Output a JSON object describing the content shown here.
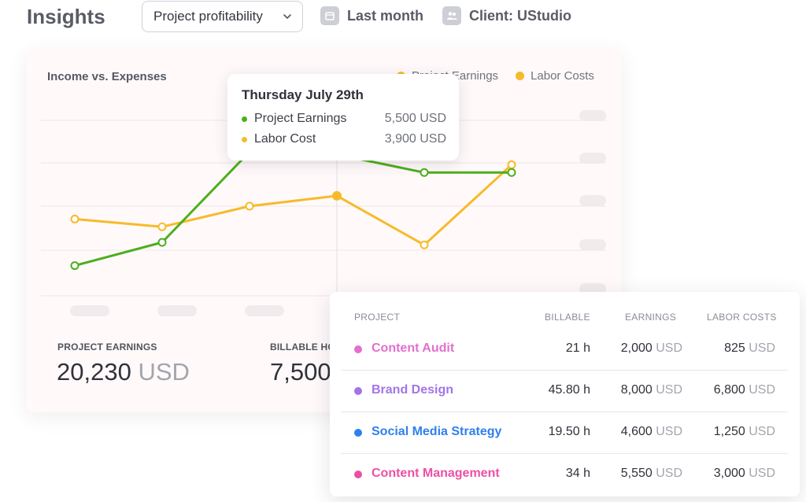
{
  "header": {
    "title": "Insights",
    "report_select": "Project profitability",
    "date_filter": "Last month",
    "client_filter": "Client: UStudio"
  },
  "chart_data": {
    "type": "line",
    "title": "Income vs. Expenses",
    "legend": [
      "Project Earnings",
      "Labor Costs"
    ],
    "legend_placement": "top-right",
    "x": [
      "",
      "",
      "",
      "Thursday July 29th",
      "",
      ""
    ],
    "series": [
      {
        "name": "Project Earnings",
        "color": "#4caf1c",
        "values": [
          1200,
          2100,
          5600,
          5500,
          4800,
          4800
        ]
      },
      {
        "name": "Labor Costs",
        "color": "#f6bb2a",
        "values": [
          3000,
          2700,
          3500,
          3900,
          2000,
          5100
        ]
      }
    ],
    "ylim": [
      0,
      7000
    ],
    "grid": true,
    "highlighted_index": 3
  },
  "tooltip": {
    "title": "Thursday July 29th",
    "rows": [
      {
        "label": "Project Earnings",
        "value": "5,500 USD",
        "color": "#4caf1c"
      },
      {
        "label": "Labor Cost",
        "value": "3,900 USD",
        "color": "#f6bb2a"
      }
    ]
  },
  "stats": {
    "earnings_label": "PROJECT EARNINGS",
    "earnings_value": "20,230",
    "earnings_unit": "USD",
    "billable_label": "BILLABLE HO",
    "billable_value": "7,500"
  },
  "table": {
    "headers": {
      "project": "PROJECT",
      "billable": "BILLABLE",
      "earnings": "EARNINGS",
      "labor": "LABOR COSTS"
    },
    "unit": "USD",
    "rows": [
      {
        "name": "Content Audit",
        "color": "#e36fcf",
        "billable": "21 h",
        "earnings": "2,000",
        "labor": "825"
      },
      {
        "name": "Brand Design",
        "color": "#a374e8",
        "billable": "45.80 h",
        "earnings": "8,000",
        "labor": "6,800"
      },
      {
        "name": "Social Media Strategy",
        "color": "#2f80ed",
        "billable": "19.50 h",
        "earnings": "4,600",
        "labor": "1,250"
      },
      {
        "name": "Content Management",
        "color": "#ee4fa5",
        "billable": "34 h",
        "earnings": "5,550",
        "labor": "3,000"
      }
    ]
  }
}
